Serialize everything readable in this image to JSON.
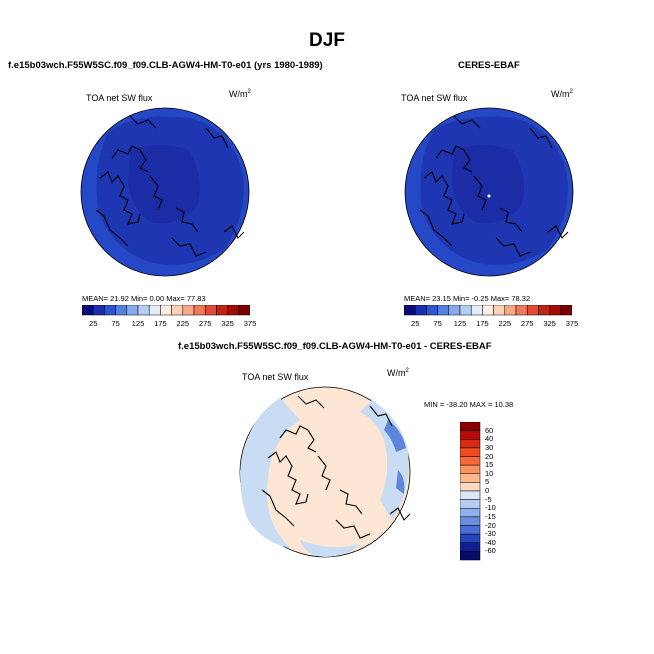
{
  "page": {
    "title": "DJF"
  },
  "panels": [
    {
      "title": "f.e15b03wch.F55W5SC.f09_f09.CLB-AGW4-HM-T0-e01 (yrs 1980-1989)",
      "variable": "TOA net SW flux",
      "units_base": "W/m",
      "units_exp": "2",
      "stats": "MEAN=  21.92   Min=    0.00   Max=  77.83"
    },
    {
      "title": "CERES-EBAF",
      "variable": "TOA net SW flux",
      "units_base": "W/m",
      "units_exp": "2",
      "stats": "MEAN=  23.15   Min=  -0.25   Max=  78.32"
    },
    {
      "title": "f.e15b03wch.F55W5SC.f09_f09.CLB-AGW4-HM-T0-e01 - CERES-EBAF",
      "variable": "TOA net SW flux",
      "units_base": "W/m",
      "units_exp": "2",
      "stats": "MIN = -38.20  MAX =  10.38"
    }
  ],
  "abs_colorbar": {
    "labels": [
      "25",
      "75",
      "125",
      "175",
      "225",
      "275",
      "325",
      "375"
    ],
    "colors": [
      "#0a0a78",
      "#1c2db0",
      "#2f55d0",
      "#5580e0",
      "#86aaea",
      "#b6ccf2",
      "#e2ecfa",
      "#fdf0e2",
      "#fbd2b6",
      "#f6a888",
      "#ee7a5c",
      "#e04a36",
      "#c02412",
      "#a40a06",
      "#7a0000"
    ]
  },
  "diff_colorbar": {
    "labels": [
      "60",
      "40",
      "30",
      "20",
      "15",
      "10",
      "5",
      "0",
      "-5",
      "-10",
      "-15",
      "-20",
      "-30",
      "-40",
      "-60"
    ],
    "colors": [
      "#8a0000",
      "#b80a0a",
      "#d82a12",
      "#ef4a20",
      "#f5683a",
      "#f8925e",
      "#fbb88e",
      "#fdd8bd",
      "#dbe8f8",
      "#b6cdf2",
      "#8fb0ec",
      "#6a8fe2",
      "#4a6ed6",
      "#2444b8",
      "#0f1f90",
      "#060c64"
    ]
  },
  "map_colors": {
    "outer_ring": "#2448c6",
    "inner_cap": "#1f36b2",
    "arctic_core": "#1b2ca6",
    "diff_base": "#fde6d4",
    "diff_blue": "#c8dcf4",
    "diff_deep_blue": "#5d86dc"
  }
}
